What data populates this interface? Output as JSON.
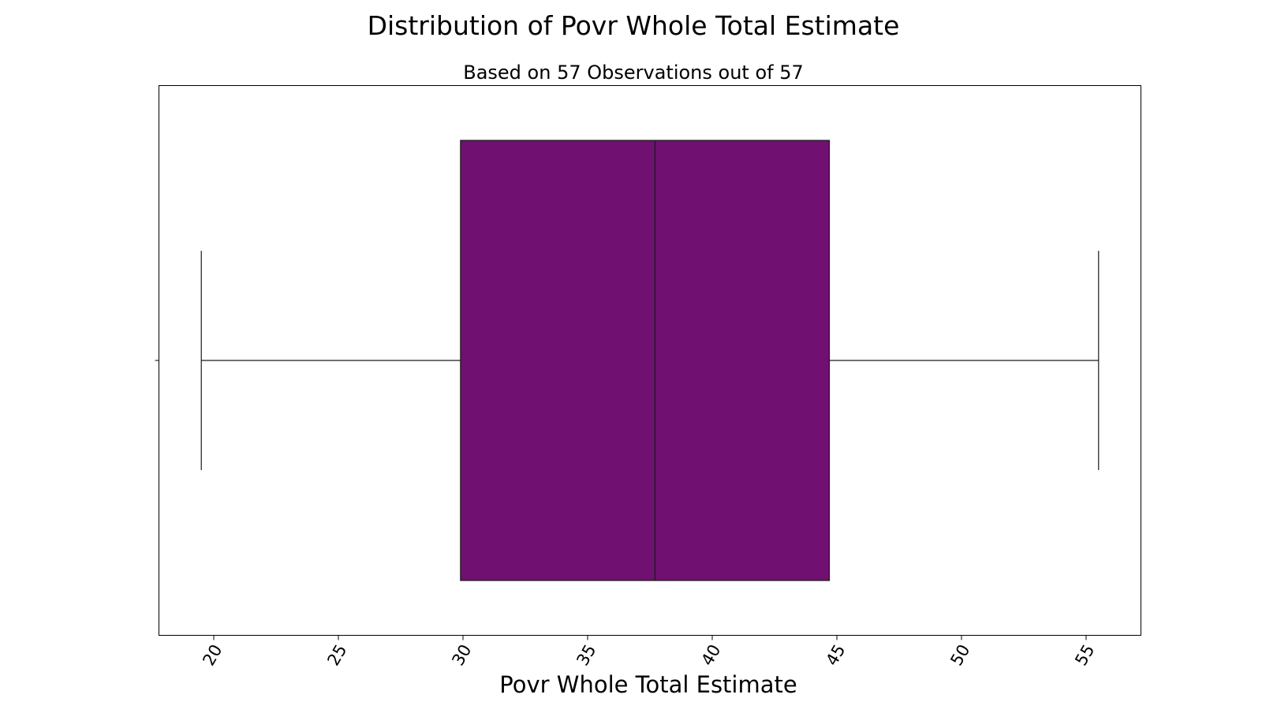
{
  "chart_data": {
    "type": "box",
    "title": "Distribution of Povr Whole Total Estimate",
    "subtitle": "Based on 57 Observations out of 57",
    "xlabel": "Povr Whole Total Estimate",
    "ylabel": "",
    "orientation": "horizontal",
    "xlim": [
      17.8,
      57.2
    ],
    "xticks": [
      20,
      25,
      30,
      35,
      40,
      45,
      50,
      55
    ],
    "xtick_labels": [
      "20",
      "25",
      "30",
      "35",
      "40",
      "45",
      "50",
      "55"
    ],
    "xtick_rotation_deg": 60,
    "grid": false,
    "box": {
      "whisker_low": 19.5,
      "q1": 29.9,
      "median": 37.7,
      "q3": 44.7,
      "whisker_high": 55.5,
      "outliers": []
    },
    "box_color": "#701070",
    "edge_color": "#1a1a1a"
  }
}
